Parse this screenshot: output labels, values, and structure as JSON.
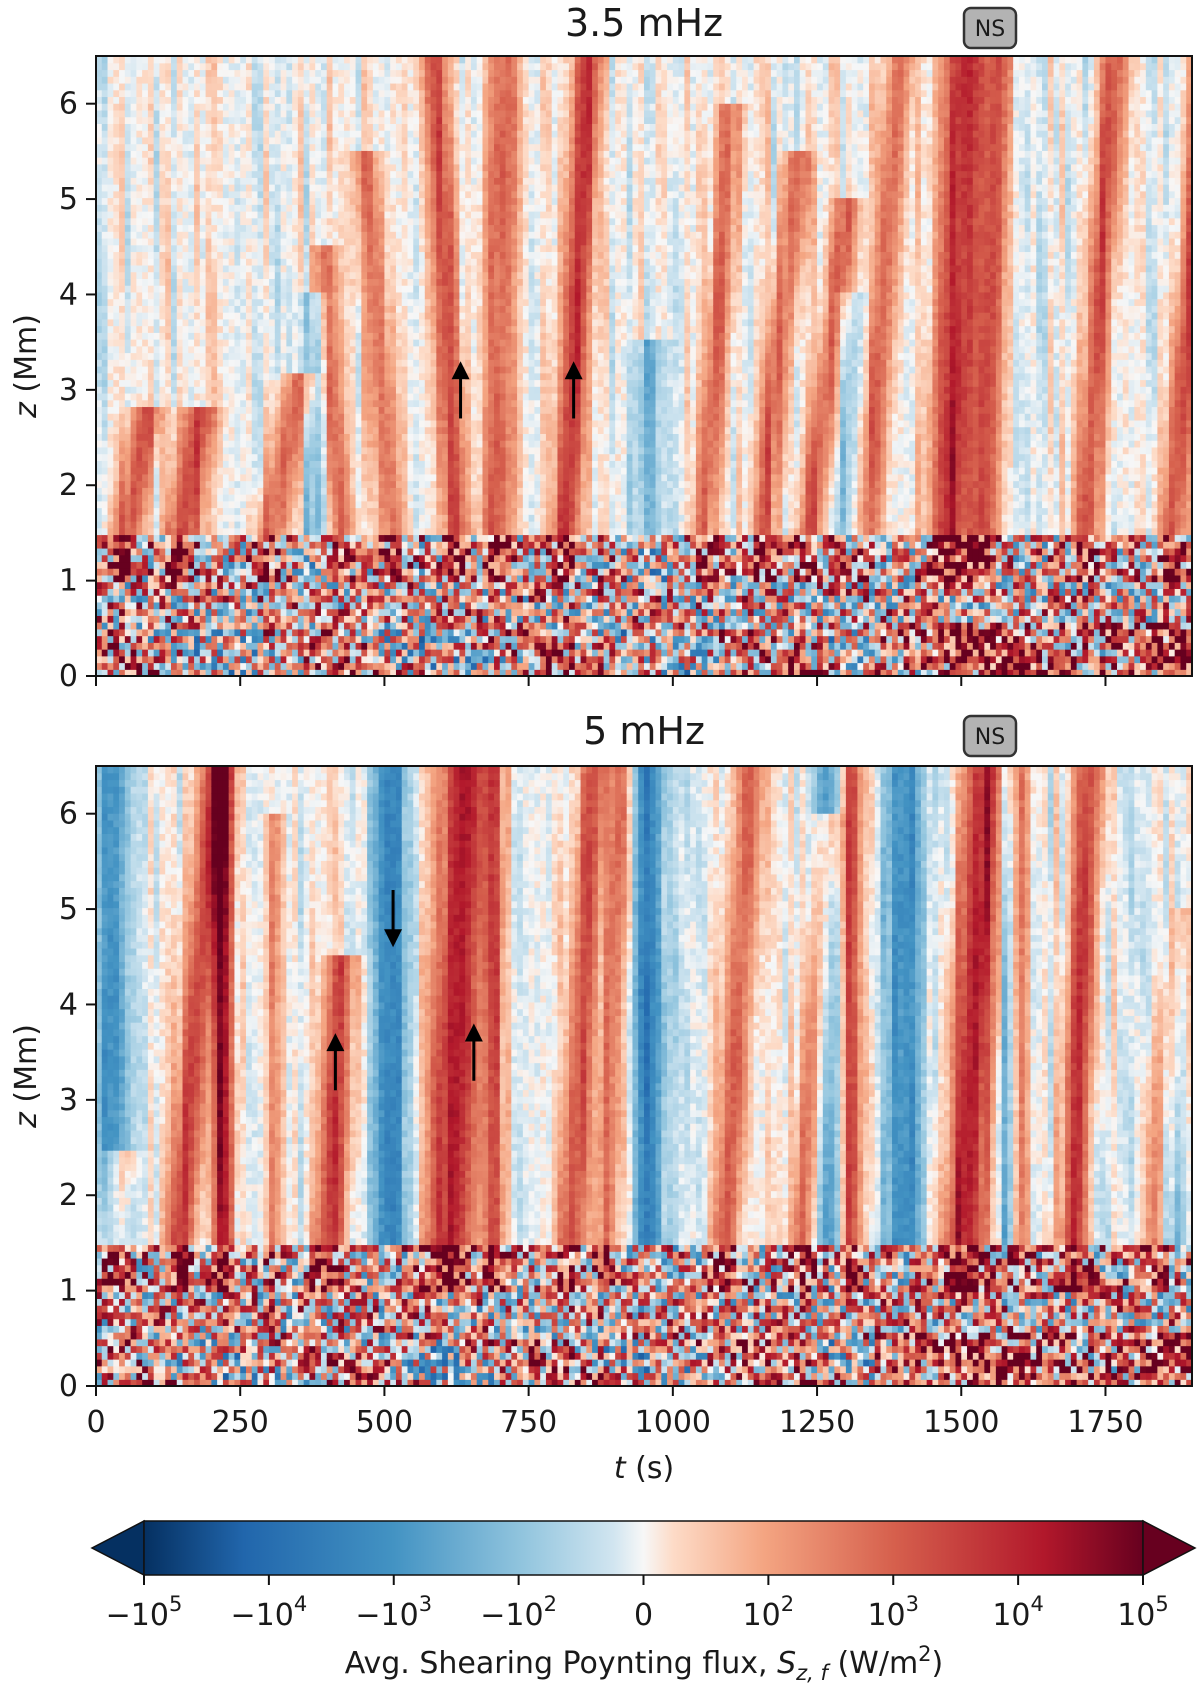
{
  "chart_data": [
    {
      "type": "heatmap",
      "title": "3.5 mHz",
      "badge": "NS",
      "xlabel": "",
      "ylabel_var": "z",
      "ylabel_unit": " (Mm)",
      "xlim": [
        0,
        1900
      ],
      "ylim": [
        0,
        6.5
      ],
      "x_ticks": [
        0,
        250,
        500,
        750,
        1000,
        1250,
        1500,
        1750
      ],
      "y_ticks": [
        0,
        1,
        2,
        3,
        4,
        5,
        6
      ],
      "y_tick_labels": [
        "0",
        "1",
        "2",
        "3",
        "4",
        "5",
        "6"
      ],
      "x_tick_labels_visible": false,
      "arrows": [
        {
          "t": 632,
          "z_from": 2.7,
          "z_to": 3.3,
          "direction": "up"
        },
        {
          "t": 828,
          "z_from": 2.7,
          "z_to": 3.3,
          "direction": "up"
        }
      ],
      "ridges": [
        {
          "t0": 40,
          "z0": 1.0,
          "z1": 2.8,
          "slope": 28,
          "width": 28,
          "amp": 0.55
        },
        {
          "t0": 140,
          "z0": 1.0,
          "z1": 2.8,
          "slope": 22,
          "width": 30,
          "amp": 0.6
        },
        {
          "t0": 290,
          "z0": 1.0,
          "z1": 3.2,
          "slope": 30,
          "width": 30,
          "amp": 0.5
        },
        {
          "t0": 430,
          "z0": 1.0,
          "z1": 4.5,
          "slope": -10,
          "width": 22,
          "amp": 0.45
        },
        {
          "t0": 520,
          "z0": 1.0,
          "z1": 5.5,
          "slope": -12,
          "width": 24,
          "amp": 0.4
        },
        {
          "t0": 630,
          "z0": 1.0,
          "z1": 6.5,
          "slope": -8,
          "width": 24,
          "amp": 0.55
        },
        {
          "t0": 695,
          "z0": 1.0,
          "z1": 6.5,
          "slope": 2,
          "width": 26,
          "amp": 0.55
        },
        {
          "t0": 810,
          "z0": 1.0,
          "z1": 6.5,
          "slope": 8,
          "width": 24,
          "amp": 0.65
        },
        {
          "t0": 1050,
          "z0": 1.0,
          "z1": 6.0,
          "slope": 10,
          "width": 22,
          "amp": 0.45
        },
        {
          "t0": 1150,
          "z0": 1.0,
          "z1": 5.5,
          "slope": 15,
          "width": 24,
          "amp": 0.5
        },
        {
          "t0": 1230,
          "z0": 1.0,
          "z1": 5.0,
          "slope": 18,
          "width": 24,
          "amp": 0.5
        },
        {
          "t0": 1330,
          "z0": 1.0,
          "z1": 6.5,
          "slope": 12,
          "width": 24,
          "amp": 0.45
        },
        {
          "t0": 1480,
          "z0": 1.0,
          "z1": 6.5,
          "slope": 5,
          "width": 40,
          "amp": 0.75
        },
        {
          "t0": 1540,
          "z0": 1.0,
          "z1": 6.5,
          "slope": 5,
          "width": 24,
          "amp": 0.5
        },
        {
          "t0": 1710,
          "z0": 1.0,
          "z1": 6.5,
          "slope": 10,
          "width": 26,
          "amp": 0.6
        },
        {
          "t0": 1860,
          "z0": 1.0,
          "z1": 6.5,
          "slope": 12,
          "width": 26,
          "amp": 0.6
        }
      ],
      "blue_ridges": [
        {
          "t0": 380,
          "z0": 1.0,
          "z1": 4.0,
          "slope": 0,
          "width": 26,
          "amp": -0.3
        },
        {
          "t0": 960,
          "z0": 1.0,
          "z1": 3.5,
          "slope": 0,
          "width": 30,
          "amp": -0.3
        },
        {
          "t0": 1300,
          "z0": 1.5,
          "z1": 4.0,
          "slope": 0,
          "width": 28,
          "amp": -0.25
        }
      ]
    },
    {
      "type": "heatmap",
      "title": "5 mHz",
      "badge": "NS",
      "xlabel_var": "t",
      "xlabel_unit": " (s)",
      "ylabel_var": "z",
      "ylabel_unit": " (Mm)",
      "xlim": [
        0,
        1900
      ],
      "ylim": [
        0,
        6.5
      ],
      "x_ticks": [
        0,
        250,
        500,
        750,
        1000,
        1250,
        1500,
        1750
      ],
      "x_tick_labels": [
        "0",
        "250",
        "500",
        "750",
        "1000",
        "1250",
        "1500",
        "1750"
      ],
      "y_ticks": [
        0,
        1,
        2,
        3,
        4,
        5,
        6
      ],
      "y_tick_labels": [
        "0",
        "1",
        "2",
        "3",
        "4",
        "5",
        "6"
      ],
      "arrows": [
        {
          "t": 415,
          "z_from": 3.1,
          "z_to": 3.7,
          "direction": "up"
        },
        {
          "t": 515,
          "z_from": 5.2,
          "z_to": 4.6,
          "direction": "down"
        },
        {
          "t": 655,
          "z_from": 3.2,
          "z_to": 3.8,
          "direction": "up"
        }
      ],
      "ridges": [
        {
          "t0": 20,
          "z0": 1.0,
          "z1": 2.5,
          "slope": 15,
          "width": 24,
          "amp": 0.45
        },
        {
          "t0": 140,
          "z0": 1.0,
          "z1": 6.5,
          "slope": 12,
          "width": 28,
          "amp": 0.65
        },
        {
          "t0": 220,
          "z0": 1.0,
          "z1": 6.5,
          "slope": 0,
          "width": 18,
          "amp": 0.85
        },
        {
          "t0": 310,
          "z0": 1.0,
          "z1": 6.0,
          "slope": 0,
          "width": 14,
          "amp": 0.35
        },
        {
          "t0": 400,
          "z0": 1.0,
          "z1": 4.5,
          "slope": 8,
          "width": 28,
          "amp": 0.6
        },
        {
          "t0": 610,
          "z0": 1.0,
          "z1": 6.5,
          "slope": 5,
          "width": 40,
          "amp": 0.8
        },
        {
          "t0": 690,
          "z0": 1.0,
          "z1": 6.5,
          "slope": 0,
          "width": 18,
          "amp": 0.55
        },
        {
          "t0": 820,
          "z0": 1.0,
          "z1": 6.5,
          "slope": 8,
          "width": 24,
          "amp": 0.55
        },
        {
          "t0": 880,
          "z0": 1.0,
          "z1": 6.5,
          "slope": 5,
          "width": 20,
          "amp": 0.45
        },
        {
          "t0": 1090,
          "z0": 1.0,
          "z1": 6.5,
          "slope": 8,
          "width": 26,
          "amp": 0.55
        },
        {
          "t0": 1220,
          "z0": 1.0,
          "z1": 6.0,
          "slope": 10,
          "width": 24,
          "amp": 0.5
        },
        {
          "t0": 1310,
          "z0": 1.0,
          "z1": 6.5,
          "slope": 0,
          "width": 16,
          "amp": 0.7
        },
        {
          "t0": 1500,
          "z0": 1.0,
          "z1": 6.5,
          "slope": 8,
          "width": 40,
          "amp": 0.8
        },
        {
          "t0": 1600,
          "z0": 1.0,
          "z1": 6.5,
          "slope": 0,
          "width": 16,
          "amp": 0.45
        },
        {
          "t0": 1690,
          "z0": 1.0,
          "z1": 6.5,
          "slope": 6,
          "width": 26,
          "amp": 0.7
        },
        {
          "t0": 1830,
          "z0": 1.0,
          "z1": 5.0,
          "slope": 10,
          "width": 26,
          "amp": 0.5
        }
      ],
      "blue_ridges": [
        {
          "t0": 30,
          "z0": 1.5,
          "z1": 6.5,
          "slope": 0,
          "width": 30,
          "amp": -0.55
        },
        {
          "t0": 510,
          "z0": 1.5,
          "z1": 6.5,
          "slope": 0,
          "width": 30,
          "amp": -0.65
        },
        {
          "t0": 960,
          "z0": 1.5,
          "z1": 6.5,
          "slope": 0,
          "width": 30,
          "amp": -0.6
        },
        {
          "t0": 1270,
          "z0": 1.5,
          "z1": 6.5,
          "slope": 0,
          "width": 24,
          "amp": -0.5
        },
        {
          "t0": 1400,
          "z0": 1.5,
          "z1": 6.5,
          "slope": 0,
          "width": 34,
          "amp": -0.55
        },
        {
          "t0": 1580,
          "z0": 1.5,
          "z1": 6.5,
          "slope": 0,
          "width": 18,
          "amp": -0.45
        },
        {
          "t0": 1860,
          "z0": 1.5,
          "z1": 5.0,
          "slope": 0,
          "width": 24,
          "amp": -0.4
        }
      ]
    }
  ],
  "colorbar": {
    "label_prefix": "Avg. Shearing Poynting flux, ",
    "label_var": "S",
    "label_sub": "z, f",
    "label_unit_prefix": " (W/m",
    "label_unit_sup": "2",
    "label_unit_suffix": ")",
    "ticks": [
      {
        "value": -1.0,
        "base": "−10",
        "exp": "5"
      },
      {
        "value": -0.75,
        "base": "−10",
        "exp": "4"
      },
      {
        "value": -0.5,
        "base": "−10",
        "exp": "3"
      },
      {
        "value": -0.25,
        "base": "−10",
        "exp": "2"
      },
      {
        "value": 0,
        "base": "0",
        "exp": ""
      },
      {
        "value": 0.25,
        "base": "10",
        "exp": "2"
      },
      {
        "value": 0.5,
        "base": "10",
        "exp": "3"
      },
      {
        "value": 0.75,
        "base": "10",
        "exp": "4"
      },
      {
        "value": 1.0,
        "base": "10",
        "exp": "5"
      }
    ],
    "colormap": "RdBu_r",
    "extend": "both"
  }
}
